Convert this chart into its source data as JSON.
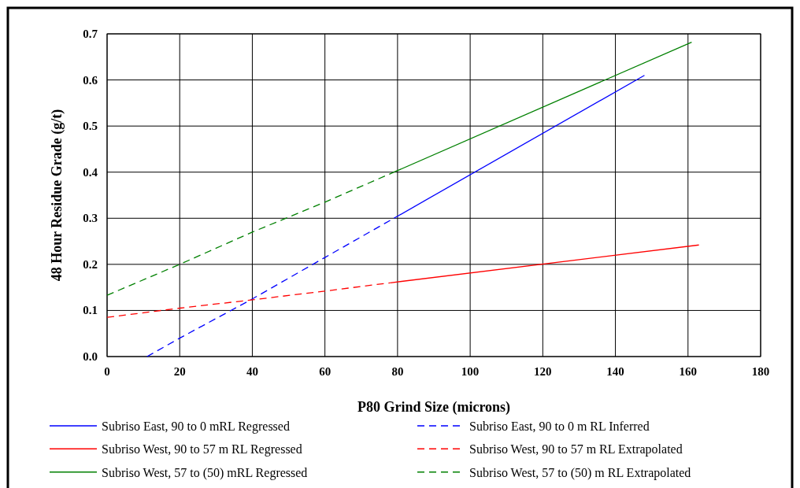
{
  "chart_data": {
    "type": "line",
    "xlabel": "P80 Grind Size (microns)",
    "ylabel": "48 Hour Residue Grade (g/t)",
    "xlim": [
      0,
      180
    ],
    "xticks": [
      0,
      20,
      40,
      60,
      80,
      100,
      120,
      140,
      160,
      180
    ],
    "ylim": [
      0,
      0.7
    ],
    "yticks": [
      {
        "value": 0,
        "label": "0.0"
      },
      0.1,
      0.2,
      0.3,
      0.4,
      0.5,
      0.6,
      0.7
    ],
    "grid": true,
    "legend": "bottom",
    "marker": "none",
    "series": [
      {
        "name": "Subriso East, 90 to 0 mRL Regressed",
        "color": "#0000ff",
        "line_style": "solid",
        "x": [
          79,
          148
        ],
        "values": [
          0.3,
          0.61
        ]
      },
      {
        "name": "Subriso East, 90 to 0 m RL  Inferred",
        "color": "#0000ff",
        "line_style": "dashed",
        "x": [
          11,
          20,
          40,
          60,
          79
        ],
        "values": [
          0,
          0.04,
          0.125,
          0.215,
          0.3
        ]
      },
      {
        "name": "Subriso West, 90 to 57 m RL Regressed",
        "color": "#ff0000",
        "line_style": "solid",
        "x": [
          78,
          163
        ],
        "values": [
          0.16,
          0.242
        ]
      },
      {
        "name": "Subriso West, 90 to 57 m RL Extrapolated",
        "color": "#ff0000",
        "line_style": "dashed",
        "x": [
          0,
          20,
          40,
          60,
          78
        ],
        "values": [
          0.085,
          0.105,
          0.123,
          0.142,
          0.16
        ]
      },
      {
        "name": "Subriso West, 57 to (50) mRL Regressed",
        "color": "#008000",
        "line_style": "solid",
        "x": [
          79,
          161
        ],
        "values": [
          0.4,
          0.682
        ]
      },
      {
        "name": "Subriso West, 57 to (50) m RL Extrapolated",
        "color": "#008000",
        "line_style": "dashed",
        "x": [
          0,
          20,
          40,
          60,
          79
        ],
        "values": [
          0.133,
          0.2,
          0.27,
          0.335,
          0.4
        ]
      }
    ]
  }
}
